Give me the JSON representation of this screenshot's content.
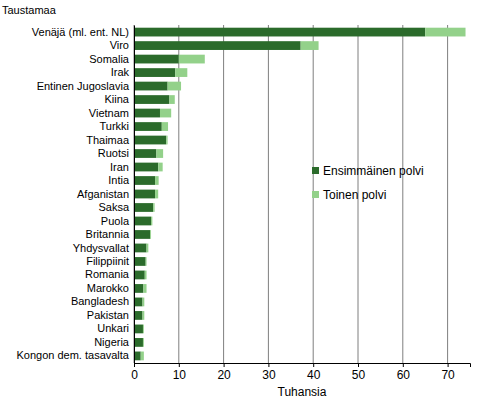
{
  "chart_data": {
    "type": "bar",
    "orientation": "horizontal",
    "stacked": true,
    "grid": true,
    "legend": "right",
    "title": "Taustamaa",
    "x_label": "Tuhansia",
    "categories": [
      "Venäjä (ml. ent. NL)",
      "Viro",
      "Somalia",
      "Irak",
      "Entinen Jugoslavia",
      "Kiina",
      "Vietnam",
      "Turkki",
      "Thaimaa",
      "Ruotsi",
      "Iran",
      "Intia",
      "Afganistan",
      "Saksa",
      "Puola",
      "Britannia",
      "Yhdysvallat",
      "Filippiinit",
      "Romania",
      "Marokko",
      "Bangladesh",
      "Pakistan",
      "Unkari",
      "Nigeria",
      "Kongon dem. tasavalta"
    ],
    "series": [
      {
        "name": "Ensimmäinen polvi",
        "color": "#2b6b2b",
        "values": [
          65,
          37.2,
          10,
          9.2,
          7.5,
          7.9,
          5.8,
          6.2,
          7.2,
          5,
          5.4,
          4.7,
          4.7,
          4.3,
          3.8,
          3.6,
          2.8,
          2.6,
          2.4,
          2.1,
          1.9,
          1.9,
          2,
          2,
          1.5
        ]
      },
      {
        "name": "Toinen polvi",
        "color": "#93d18a",
        "values": [
          9,
          4,
          5.8,
          2.7,
          3,
          1.2,
          2.5,
          1.4,
          0.3,
          1.5,
          1,
          0.8,
          0.7,
          0.3,
          0.3,
          0.2,
          0.4,
          0.2,
          0.4,
          0.7,
          0.4,
          0.4,
          0.2,
          0.2,
          0.7
        ]
      }
    ],
    "xlim": [
      0,
      75
    ],
    "xticks": [
      0,
      10,
      20,
      30,
      40,
      50,
      60,
      70
    ]
  }
}
